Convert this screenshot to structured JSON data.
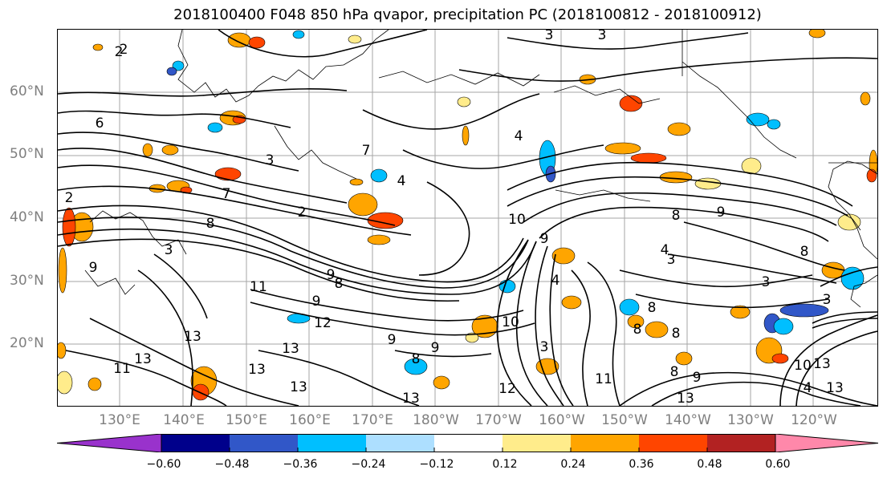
{
  "title": "2018100400 F048 850 hPa qvapor, precipitation PC (2018100812 - 2018100912)",
  "map": {
    "latitude_labels": [
      "60°N",
      "50°N",
      "40°N",
      "30°N",
      "20°N"
    ],
    "longitude_labels": [
      "130°E",
      "140°E",
      "150°E",
      "160°E",
      "170°E",
      "180°W",
      "170°W",
      "160°W",
      "150°W",
      "140°W",
      "130°W",
      "120°W"
    ],
    "contour_labels": [
      "2",
      "3",
      "4",
      "6",
      "7",
      "8",
      "9",
      "10",
      "11",
      "12",
      "13"
    ],
    "gridlines": true,
    "coastlines": true
  },
  "colorbar": {
    "tick_labels": [
      "−0.60",
      "−0.48",
      "−0.36",
      "−0.24",
      "−0.12",
      "0.12",
      "0.24",
      "0.36",
      "0.48",
      "0.60"
    ],
    "colors": [
      "#9932CC",
      "#00008B",
      "#3157C8",
      "#00BFFF",
      "#ADDFFF",
      "#FFFFFF",
      "#FFEC8B",
      "#FFA500",
      "#FF4500",
      "#B22222",
      "#FF88AA"
    ]
  },
  "contour_line_color": "#000000"
}
